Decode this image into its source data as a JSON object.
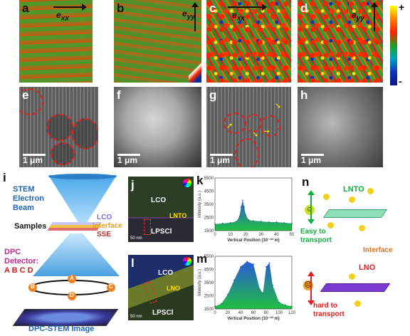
{
  "panels": {
    "a": {
      "label": "a",
      "axis": "e",
      "sub": "xx"
    },
    "b": {
      "label": "b",
      "axis": "e",
      "sub": "yy"
    },
    "c": {
      "label": "c",
      "axis": "e",
      "sub": "xx"
    },
    "d": {
      "label": "d",
      "axis": "e",
      "sub": "yy"
    },
    "e": {
      "label": "e",
      "scale": "1 μm"
    },
    "f": {
      "label": "f",
      "scale": "1 μm"
    },
    "g": {
      "label": "g",
      "scale": "1 μm"
    },
    "h": {
      "label": "h",
      "scale": "1 μm"
    },
    "i": {
      "label": "i"
    },
    "j": {
      "label": "j",
      "scale": "50 nm"
    },
    "k": {
      "label": "k"
    },
    "l": {
      "label": "l",
      "scale": "50 nm"
    },
    "m": {
      "label": "m"
    },
    "n": {
      "label": "n"
    }
  },
  "colorbar": {
    "plus": "+",
    "minus": "-"
  },
  "schematic": {
    "beam": [
      "STEM",
      "Electron",
      "Beam"
    ],
    "samples": "Samples",
    "lco": "LCO",
    "interface": "Interface",
    "sse": "SSE",
    "detector": [
      "DPC",
      "Detector:",
      "A B C D"
    ],
    "quadrants": [
      "A",
      "B",
      "C",
      "D"
    ],
    "image": "DPC-STEM Image"
  },
  "stem_j": {
    "lco": "LCO",
    "lnto": "LNTO",
    "lpscl": "LPSCl"
  },
  "stem_l": {
    "lco": "LCO",
    "lno": "LNO",
    "lpscl": "LPSCl"
  },
  "chart_data": [
    {
      "type": "area",
      "panel": "k",
      "xlabel": "Vertical Position (10⁻¹⁰ m)",
      "ylabel": "Intensity (a.u.)",
      "xlim": [
        0,
        50
      ],
      "ylim": [
        1500,
        5500
      ],
      "xticks": [
        0,
        10,
        20,
        30,
        40,
        50
      ],
      "yticks": [
        1500,
        2500,
        3500,
        4500,
        5500
      ],
      "x": [
        0,
        5,
        10,
        14,
        16,
        17,
        18,
        19,
        20,
        22,
        25,
        30,
        35,
        40,
        45,
        50
      ],
      "values": [
        2000,
        2050,
        2100,
        2200,
        2600,
        3300,
        3800,
        3300,
        2700,
        2300,
        2250,
        2200,
        2150,
        2150,
        2100,
        2050
      ]
    },
    {
      "type": "area",
      "panel": "m",
      "xlabel": "Vertical Position (10⁻¹⁰ m)",
      "ylabel": "Intensity (a.u.)",
      "xlim": [
        0,
        120
      ],
      "ylim": [
        1500,
        5500
      ],
      "xticks": [
        0,
        20,
        40,
        60,
        80,
        100,
        120
      ],
      "yticks": [
        1500,
        2500,
        3500,
        4500,
        5500
      ],
      "x": [
        0,
        10,
        20,
        30,
        40,
        50,
        60,
        70,
        75,
        80,
        85,
        90,
        100,
        110,
        120
      ],
      "values": [
        1700,
        1900,
        2600,
        3700,
        4700,
        5100,
        4900,
        3000,
        2700,
        4700,
        5000,
        3300,
        2000,
        1800,
        1700
      ]
    }
  ],
  "transport": {
    "lnto": "LNTO",
    "easy": [
      "Easy to",
      "transport"
    ],
    "interface": "Interface",
    "lno": "LNO",
    "hard": [
      "hard to",
      "transport"
    ]
  }
}
